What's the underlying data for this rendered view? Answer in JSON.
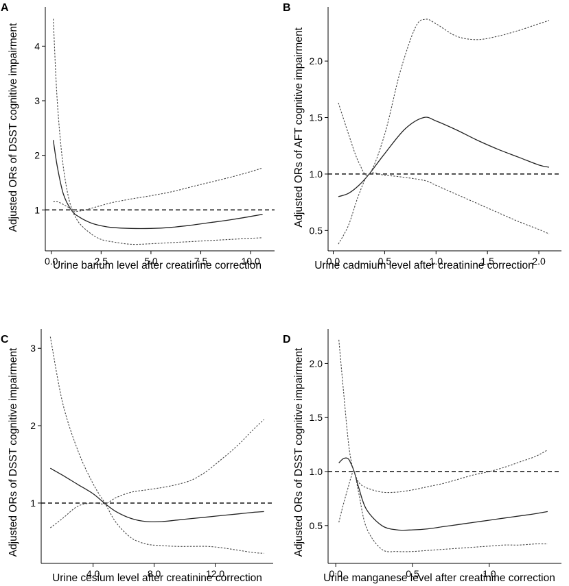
{
  "chart_data": [
    {
      "panel": "A",
      "type": "line",
      "ylabel": "Adjusted ORs of DSST cognitive impairment",
      "xlabel": "Urine barium level after creatinine correction",
      "xlim": [
        -0.3,
        11.2
      ],
      "ylim": [
        0.25,
        4.72
      ],
      "xticks": [
        0.0,
        2.5,
        5.0,
        7.5,
        10.0
      ],
      "xtick_labels": [
        "0.0",
        "2.5",
        "5.0",
        "7.5",
        "10.0"
      ],
      "yticks": [
        1,
        2,
        3,
        4
      ],
      "ytick_labels": [
        "1",
        "2",
        "3",
        "4"
      ],
      "reference_y": 1,
      "series": [
        {
          "name": "estimate",
          "x": [
            0.1,
            0.3,
            0.6,
            1.0,
            1.4,
            2.0,
            2.5,
            3.0,
            4.0,
            5.0,
            6.0,
            7.0,
            8.0,
            9.0,
            10.0,
            10.6
          ],
          "y": [
            2.28,
            1.8,
            1.3,
            1.0,
            0.87,
            0.76,
            0.71,
            0.68,
            0.66,
            0.66,
            0.68,
            0.72,
            0.77,
            0.82,
            0.88,
            0.92
          ]
        },
        {
          "name": "upper 95% CI",
          "x": [
            0.1,
            0.3,
            0.6,
            1.0,
            1.4,
            2.0,
            2.5,
            3.0,
            4.0,
            5.0,
            6.0,
            7.0,
            8.0,
            9.0,
            10.0,
            10.6
          ],
          "y": [
            4.5,
            3.0,
            1.8,
            1.05,
            0.98,
            1.03,
            1.08,
            1.13,
            1.2,
            1.26,
            1.33,
            1.42,
            1.51,
            1.6,
            1.7,
            1.77
          ]
        },
        {
          "name": "lower 95% CI",
          "x": [
            0.1,
            0.3,
            0.6,
            1.0,
            1.4,
            2.0,
            2.5,
            3.0,
            4.0,
            5.0,
            6.0,
            7.0,
            8.0,
            9.0,
            10.0,
            10.6
          ],
          "y": [
            1.15,
            1.15,
            1.1,
            1.0,
            0.76,
            0.56,
            0.46,
            0.42,
            0.37,
            0.38,
            0.4,
            0.42,
            0.44,
            0.46,
            0.48,
            0.49
          ]
        }
      ]
    },
    {
      "panel": "B",
      "type": "line",
      "ylabel": "Adjusted ORs of AFT cognitive impairment",
      "xlabel": "Urine cadmium level after creatinine correction",
      "xlim": [
        -0.05,
        2.22
      ],
      "ylim": [
        0.32,
        2.48
      ],
      "xticks": [
        0.0,
        0.5,
        1.0,
        1.5,
        2.0
      ],
      "xtick_labels": [
        "0.0",
        "0.5",
        "1.0",
        "1.5",
        "2.0"
      ],
      "yticks": [
        0.5,
        1.0,
        1.5,
        2.0
      ],
      "ytick_labels": [
        "0.5",
        "1.0",
        "1.5",
        "2.0"
      ],
      "reference_y": 1.0,
      "series": [
        {
          "name": "estimate",
          "x": [
            0.05,
            0.15,
            0.25,
            0.35,
            0.5,
            0.7,
            0.88,
            1.0,
            1.2,
            1.4,
            1.6,
            1.8,
            2.0,
            2.1
          ],
          "y": [
            0.8,
            0.83,
            0.9,
            1.0,
            1.18,
            1.4,
            1.5,
            1.47,
            1.39,
            1.3,
            1.22,
            1.15,
            1.08,
            1.06
          ]
        },
        {
          "name": "upper 95% CI",
          "x": [
            0.05,
            0.15,
            0.25,
            0.35,
            0.5,
            0.65,
            0.8,
            0.9,
            1.0,
            1.2,
            1.4,
            1.6,
            1.8,
            2.0,
            2.1
          ],
          "y": [
            1.63,
            1.35,
            1.1,
            1.0,
            1.35,
            1.9,
            2.3,
            2.37,
            2.33,
            2.22,
            2.19,
            2.22,
            2.27,
            2.33,
            2.36
          ]
        },
        {
          "name": "lower 95% CI",
          "x": [
            0.05,
            0.15,
            0.25,
            0.35,
            0.5,
            0.7,
            0.9,
            1.0,
            1.2,
            1.4,
            1.6,
            1.8,
            2.0,
            2.1
          ],
          "y": [
            0.38,
            0.55,
            0.82,
            1.0,
            0.99,
            0.97,
            0.94,
            0.9,
            0.82,
            0.74,
            0.66,
            0.58,
            0.51,
            0.47
          ]
        }
      ]
    },
    {
      "panel": "C",
      "type": "line",
      "ylabel": "Adjusted ORs of DSST cognitive impairment",
      "xlabel": "Urine cesium level after creatinine correction",
      "xlim": [
        0.6,
        15.8
      ],
      "ylim": [
        0.22,
        3.25
      ],
      "xticks": [
        4.0,
        8.0,
        12.0
      ],
      "xtick_labels": [
        "4.0",
        "8.0",
        "12.0"
      ],
      "yticks": [
        1,
        2,
        3
      ],
      "ytick_labels": [
        "1",
        "2",
        "3"
      ],
      "reference_y": 1,
      "series": [
        {
          "name": "estimate",
          "x": [
            1.2,
            2,
            3,
            4,
            4.8,
            5.5,
            6.5,
            7.5,
            8.5,
            9.5,
            10.5,
            11.5,
            12.5,
            13.5,
            14.5,
            15.2
          ],
          "y": [
            1.45,
            1.36,
            1.24,
            1.12,
            0.99,
            0.89,
            0.8,
            0.76,
            0.76,
            0.78,
            0.8,
            0.82,
            0.84,
            0.86,
            0.88,
            0.89
          ]
        },
        {
          "name": "upper 95% CI",
          "x": [
            1.2,
            2,
            3,
            4,
            4.8,
            5.5,
            6.5,
            7.5,
            8.5,
            9.5,
            10.5,
            11.5,
            12.5,
            13.5,
            14.5,
            15.2
          ],
          "y": [
            0.68,
            0.8,
            0.96,
            1.0,
            0.99,
            1.07,
            1.14,
            1.17,
            1.2,
            1.24,
            1.3,
            1.42,
            1.58,
            1.75,
            1.95,
            2.08
          ]
        },
        {
          "name": "lower 95% CI",
          "x": [
            1.2,
            2,
            3,
            4,
            4.8,
            5.5,
            6.5,
            7.5,
            8.5,
            9.5,
            10.5,
            11.5,
            12.5,
            13.5,
            14.5,
            15.2
          ],
          "y": [
            3.15,
            2.3,
            1.68,
            1.25,
            0.99,
            0.75,
            0.55,
            0.47,
            0.45,
            0.44,
            0.44,
            0.44,
            0.42,
            0.39,
            0.36,
            0.35
          ]
        }
      ]
    },
    {
      "panel": "D",
      "type": "line",
      "ylabel": "Adjusted ORs of DSST cognitive impairment",
      "xlabel": "Urine manganese level after creatinine correction",
      "xlim": [
        -0.05,
        1.47
      ],
      "ylim": [
        0.15,
        2.32
      ],
      "xticks": [
        0.0,
        0.5,
        1.0
      ],
      "xtick_labels": [
        "0.0",
        "0.5",
        "1.0"
      ],
      "yticks": [
        0.5,
        1.0,
        1.5,
        2.0
      ],
      "ytick_labels": [
        "0.5",
        "1.0",
        "1.5",
        "2.0"
      ],
      "reference_y": 1.0,
      "series": [
        {
          "name": "estimate",
          "x": [
            0.02,
            0.05,
            0.08,
            0.1,
            0.12,
            0.15,
            0.2,
            0.3,
            0.4,
            0.5,
            0.6,
            0.7,
            0.8,
            0.9,
            1.0,
            1.1,
            1.2,
            1.3,
            1.38
          ],
          "y": [
            1.08,
            1.12,
            1.12,
            1.07,
            1.0,
            0.85,
            0.65,
            0.5,
            0.46,
            0.46,
            0.47,
            0.49,
            0.51,
            0.53,
            0.55,
            0.57,
            0.59,
            0.61,
            0.63
          ]
        },
        {
          "name": "upper 95% CI",
          "x": [
            0.02,
            0.05,
            0.08,
            0.1,
            0.12,
            0.15,
            0.2,
            0.3,
            0.4,
            0.5,
            0.6,
            0.7,
            0.8,
            0.9,
            1.0,
            1.1,
            1.2,
            1.3,
            1.38
          ],
          "y": [
            2.22,
            1.75,
            1.3,
            1.1,
            1.0,
            0.9,
            0.85,
            0.81,
            0.81,
            0.83,
            0.86,
            0.89,
            0.93,
            0.97,
            1.0,
            1.04,
            1.09,
            1.14,
            1.2
          ]
        },
        {
          "name": "lower 95% CI",
          "x": [
            0.02,
            0.05,
            0.08,
            0.1,
            0.12,
            0.15,
            0.2,
            0.3,
            0.4,
            0.5,
            0.6,
            0.7,
            0.8,
            0.9,
            1.0,
            1.1,
            1.2,
            1.3,
            1.38
          ],
          "y": [
            0.53,
            0.7,
            0.85,
            0.95,
            1.0,
            0.8,
            0.48,
            0.28,
            0.26,
            0.26,
            0.27,
            0.28,
            0.29,
            0.3,
            0.31,
            0.32,
            0.32,
            0.33,
            0.33
          ]
        }
      ]
    }
  ]
}
